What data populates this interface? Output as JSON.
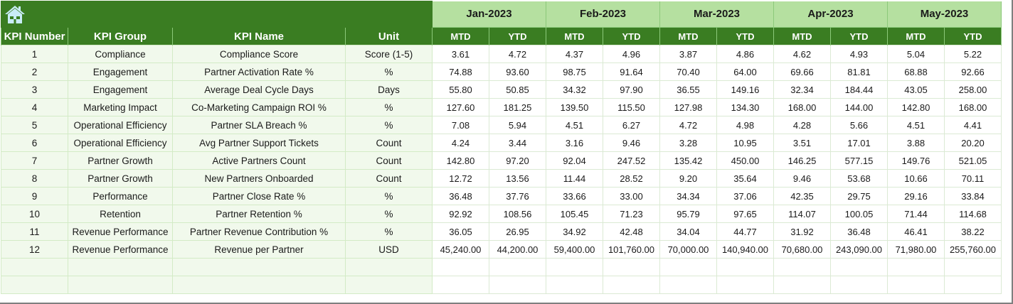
{
  "header": {
    "home_icon": "home-icon",
    "months": [
      "Jan-2023",
      "Feb-2023",
      "Mar-2023",
      "Apr-2023",
      "May-2023"
    ],
    "columns": {
      "kpi_number": "KPI Number",
      "kpi_group": "KPI Group",
      "kpi_name": "KPI Name",
      "unit": "Unit",
      "mtd": "MTD",
      "ytd": "YTD"
    }
  },
  "colors": {
    "header_dark_green": "#3a7d22",
    "month_light_green": "#b5e0a0",
    "left_body_bg": "#f1f9ec",
    "home_icon": "#c9ecf7"
  },
  "rows": [
    {
      "num": "1",
      "group": "Compliance",
      "name": "Compliance Score",
      "unit": "Score (1-5)",
      "values": [
        "3.61",
        "4.72",
        "4.37",
        "4.96",
        "3.87",
        "4.86",
        "4.62",
        "4.93",
        "5.04",
        "5.22"
      ]
    },
    {
      "num": "2",
      "group": "Engagement",
      "name": "Partner Activation Rate %",
      "unit": "%",
      "values": [
        "74.88",
        "93.60",
        "98.75",
        "91.64",
        "70.40",
        "64.00",
        "69.66",
        "81.81",
        "68.88",
        "92.66"
      ]
    },
    {
      "num": "3",
      "group": "Engagement",
      "name": "Average Deal Cycle Days",
      "unit": "Days",
      "values": [
        "55.80",
        "50.85",
        "34.32",
        "97.90",
        "36.55",
        "149.16",
        "32.34",
        "184.44",
        "43.05",
        "258.00"
      ]
    },
    {
      "num": "4",
      "group": "Marketing Impact",
      "name": "Co-Marketing Campaign ROI %",
      "unit": "%",
      "values": [
        "127.60",
        "181.25",
        "139.50",
        "115.50",
        "127.98",
        "134.30",
        "168.00",
        "144.00",
        "142.80",
        "168.00"
      ]
    },
    {
      "num": "5",
      "group": "Operational Efficiency",
      "name": "Partner SLA Breach %",
      "unit": "%",
      "values": [
        "7.08",
        "5.94",
        "4.51",
        "6.27",
        "4.72",
        "4.98",
        "4.28",
        "5.66",
        "4.51",
        "4.41"
      ]
    },
    {
      "num": "6",
      "group": "Operational Efficiency",
      "name": "Avg Partner Support Tickets",
      "unit": "Count",
      "values": [
        "4.24",
        "3.44",
        "3.16",
        "9.46",
        "3.28",
        "10.95",
        "3.51",
        "17.01",
        "3.88",
        "20.20"
      ]
    },
    {
      "num": "7",
      "group": "Partner Growth",
      "name": "Active Partners Count",
      "unit": "Count",
      "values": [
        "142.80",
        "97.20",
        "92.04",
        "247.52",
        "135.42",
        "450.00",
        "146.25",
        "577.15",
        "149.76",
        "521.05"
      ]
    },
    {
      "num": "8",
      "group": "Partner Growth",
      "name": "New Partners Onboarded",
      "unit": "Count",
      "values": [
        "12.72",
        "13.56",
        "11.44",
        "28.52",
        "9.20",
        "35.64",
        "9.46",
        "53.68",
        "10.66",
        "70.11"
      ]
    },
    {
      "num": "9",
      "group": "Performance",
      "name": "Partner Close Rate %",
      "unit": "%",
      "values": [
        "36.48",
        "37.76",
        "33.66",
        "33.00",
        "34.34",
        "37.06",
        "42.35",
        "29.75",
        "29.16",
        "33.84"
      ]
    },
    {
      "num": "10",
      "group": "Retention",
      "name": "Partner Retention %",
      "unit": "%",
      "values": [
        "92.92",
        "108.56",
        "105.45",
        "71.23",
        "95.79",
        "97.65",
        "114.07",
        "100.05",
        "71.44",
        "114.68"
      ]
    },
    {
      "num": "11",
      "group": "Revenue Performance",
      "name": "Partner Revenue Contribution %",
      "unit": "%",
      "values": [
        "36.05",
        "26.95",
        "34.92",
        "42.48",
        "34.04",
        "44.77",
        "31.92",
        "36.48",
        "46.41",
        "38.22"
      ]
    },
    {
      "num": "12",
      "group": "Revenue Performance",
      "name": "Revenue per Partner",
      "unit": "USD",
      "values": [
        "45,240.00",
        "44,200.00",
        "59,400.00",
        "101,760.00",
        "70,000.00",
        "140,940.00",
        "70,680.00",
        "243,090.00",
        "71,980.00",
        "255,760.00"
      ]
    }
  ],
  "empty_rows": 2
}
